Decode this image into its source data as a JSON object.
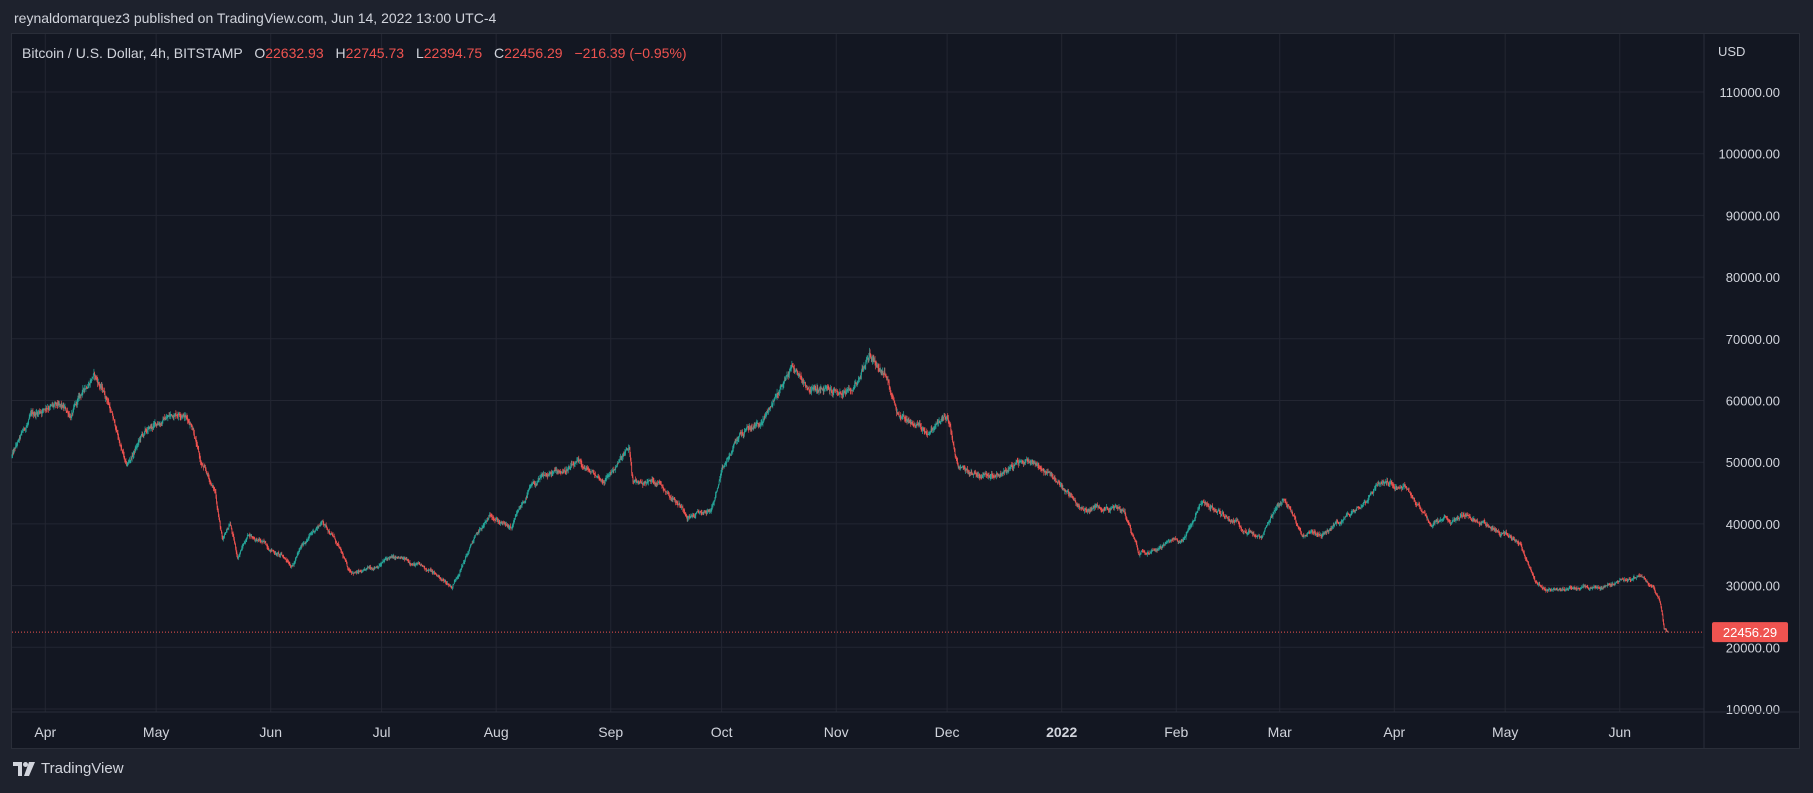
{
  "header": {
    "published": "reynaldomarquez3 published on TradingView.com, Jun 14, 2022 13:00 UTC-4"
  },
  "legend": {
    "symbol": "Bitcoin / U.S. Dollar, 4h, BITSTAMP",
    "o_label": "O",
    "o_value": "22632.93",
    "h_label": "H",
    "h_value": "22745.73",
    "l_label": "L",
    "l_value": "22394.75",
    "c_label": "C",
    "c_value": "22456.29",
    "change": "−216.39 (−0.95%)"
  },
  "brand": {
    "name": "TradingView",
    "icon": "tradingview-logo-icon"
  },
  "colors": {
    "background": "#131722",
    "frame": "#1e222d",
    "up": "#26a69a",
    "down": "#ef5350",
    "grid": "#232632",
    "text": "#d1d4dc"
  },
  "chart_data": {
    "type": "candlestick",
    "symbol": "BTCUSD",
    "interval": "4h",
    "exchange": "BITSTAMP",
    "currency": "USD",
    "y_axis_label": "USD",
    "y_range": [
      8000,
      118000
    ],
    "y_ticks": [
      "110000.00",
      "100000.00",
      "90000.00",
      "80000.00",
      "70000.00",
      "60000.00",
      "50000.00",
      "40000.00",
      "30000.00",
      "20000.00",
      "10000.00"
    ],
    "x_ticks": [
      "Apr",
      "May",
      "Jun",
      "Jul",
      "Aug",
      "Sep",
      "Oct",
      "Nov",
      "Dec",
      "2022",
      "Feb",
      "Mar",
      "Apr",
      "May",
      "Jun"
    ],
    "x_tick_bold": [
      false,
      false,
      false,
      false,
      false,
      false,
      false,
      false,
      false,
      true,
      false,
      false,
      false,
      false,
      false
    ],
    "x_tick_dates": [
      "2021-04-01",
      "2021-05-01",
      "2021-06-01",
      "2021-07-01",
      "2021-08-01",
      "2021-09-01",
      "2021-10-01",
      "2021-11-01",
      "2021-12-01",
      "2022-01-01",
      "2022-02-01",
      "2022-03-01",
      "2022-04-01",
      "2022-05-01",
      "2022-06-01"
    ],
    "x_range": [
      "2021-03-23",
      "2022-06-20"
    ],
    "last_price": "22456.29",
    "last_price_value": 22456.29,
    "price_path": [
      [
        "2021-03-23",
        51000
      ],
      [
        "2021-03-28",
        57000
      ],
      [
        "2021-04-02",
        59500
      ],
      [
        "2021-04-08",
        57500
      ],
      [
        "2021-04-14",
        64500
      ],
      [
        "2021-04-18",
        60000
      ],
      [
        "2021-04-23",
        49000
      ],
      [
        "2021-04-27",
        54000
      ],
      [
        "2021-05-03",
        57000
      ],
      [
        "2021-05-08",
        58500
      ],
      [
        "2021-05-11",
        56000
      ],
      [
        "2021-05-13",
        50000
      ],
      [
        "2021-05-17",
        45000
      ],
      [
        "2021-05-19",
        37000
      ],
      [
        "2021-05-21",
        40000
      ],
      [
        "2021-05-23",
        34500
      ],
      [
        "2021-05-26",
        38500
      ],
      [
        "2021-06-01",
        36000
      ],
      [
        "2021-06-07",
        33500
      ],
      [
        "2021-06-10",
        37000
      ],
      [
        "2021-06-15",
        40500
      ],
      [
        "2021-06-18",
        38000
      ],
      [
        "2021-06-22",
        32500
      ],
      [
        "2021-06-26",
        32000
      ],
      [
        "2021-07-03",
        34500
      ],
      [
        "2021-07-09",
        33800
      ],
      [
        "2021-07-14",
        32500
      ],
      [
        "2021-07-20",
        29800
      ],
      [
        "2021-07-26",
        37500
      ],
      [
        "2021-07-31",
        41500
      ],
      [
        "2021-08-05",
        39000
      ],
      [
        "2021-08-10",
        45500
      ],
      [
        "2021-08-14",
        47500
      ],
      [
        "2021-08-23",
        49500
      ],
      [
        "2021-08-30",
        47000
      ],
      [
        "2021-09-06",
        52000
      ],
      [
        "2021-09-07",
        46500
      ],
      [
        "2021-09-14",
        47000
      ],
      [
        "2021-09-20",
        43000
      ],
      [
        "2021-09-22",
        41500
      ],
      [
        "2021-09-28",
        42000
      ],
      [
        "2021-10-01",
        48000
      ],
      [
        "2021-10-06",
        54500
      ],
      [
        "2021-10-12",
        56500
      ],
      [
        "2021-10-16",
        61000
      ],
      [
        "2021-10-20",
        65500
      ],
      [
        "2021-10-25",
        62000
      ],
      [
        "2021-10-29",
        61500
      ],
      [
        "2021-11-05",
        61000
      ],
      [
        "2021-11-10",
        67500
      ],
      [
        "2021-11-14",
        64500
      ],
      [
        "2021-11-18",
        58000
      ],
      [
        "2021-11-22",
        56500
      ],
      [
        "2021-11-26",
        55000
      ],
      [
        "2021-12-01",
        57500
      ],
      [
        "2021-12-04",
        48500
      ],
      [
        "2021-12-09",
        48000
      ],
      [
        "2021-12-15",
        48500
      ],
      [
        "2021-12-24",
        50500
      ],
      [
        "2021-12-31",
        47000
      ],
      [
        "2022-01-07",
        42000
      ],
      [
        "2022-01-12",
        43000
      ],
      [
        "2022-01-18",
        42000
      ],
      [
        "2022-01-22",
        35500
      ],
      [
        "2022-01-27",
        36500
      ],
      [
        "2022-02-03",
        37500
      ],
      [
        "2022-02-08",
        43500
      ],
      [
        "2022-02-12",
        42000
      ],
      [
        "2022-02-17",
        40500
      ],
      [
        "2022-02-24",
        37500
      ],
      [
        "2022-03-02",
        44000
      ],
      [
        "2022-03-07",
        38500
      ],
      [
        "2022-03-13",
        38500
      ],
      [
        "2022-03-20",
        41500
      ],
      [
        "2022-03-28",
        47000
      ],
      [
        "2022-04-04",
        46500
      ],
      [
        "2022-04-11",
        40000
      ],
      [
        "2022-04-20",
        41500
      ],
      [
        "2022-04-28",
        39500
      ],
      [
        "2022-05-05",
        37000
      ],
      [
        "2022-05-09",
        31000
      ],
      [
        "2022-05-12",
        29000
      ],
      [
        "2022-05-18",
        29800
      ],
      [
        "2022-05-26",
        29300
      ],
      [
        "2022-06-01",
        31000
      ],
      [
        "2022-06-06",
        31500
      ],
      [
        "2022-06-10",
        29500
      ],
      [
        "2022-06-12",
        27000
      ],
      [
        "2022-06-13",
        22800
      ],
      [
        "2022-06-14",
        22456
      ]
    ]
  }
}
